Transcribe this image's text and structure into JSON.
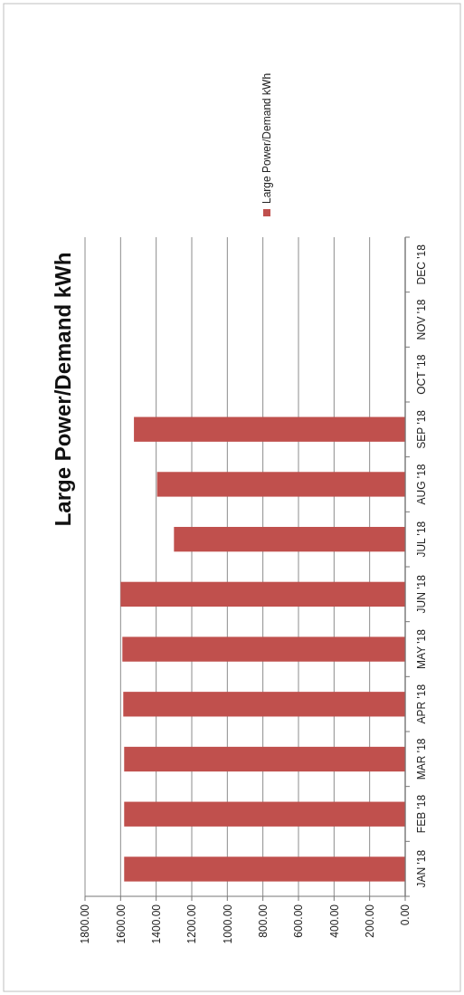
{
  "chart_data": {
    "type": "bar",
    "title": "Large Power/Demand kWh",
    "orientation": "horizontal",
    "categories": [
      "DEC '18",
      "NOV '18",
      "OCT '18",
      "SEP '18",
      "AUG '18",
      "JUL '18",
      "JUN '18",
      "MAY '18",
      "APR '18",
      "MAR '18",
      "FEB '18",
      "JAN '18"
    ],
    "series": [
      {
        "name": "Large Power/Demand kWh",
        "color": "#c0504d",
        "values": [
          null,
          null,
          null,
          1525,
          1395,
          1300,
          1600,
          1590,
          1585,
          1580,
          1580,
          1580
        ]
      }
    ],
    "xlim": [
      1800,
      0
    ],
    "xticks": [
      {
        "value": 1800,
        "label": "1800.00"
      },
      {
        "value": 1600,
        "label": "1600.00"
      },
      {
        "value": 1400,
        "label": "1400.00"
      },
      {
        "value": 1200,
        "label": "1200.00"
      },
      {
        "value": 1000,
        "label": "1000.00"
      },
      {
        "value": 800,
        "label": "800.00"
      },
      {
        "value": 600,
        "label": "600.00"
      },
      {
        "value": 400,
        "label": "400.00"
      },
      {
        "value": 200,
        "label": "200.00"
      },
      {
        "value": 0,
        "label": "0.00"
      }
    ],
    "grid": "x",
    "legend": "right"
  }
}
